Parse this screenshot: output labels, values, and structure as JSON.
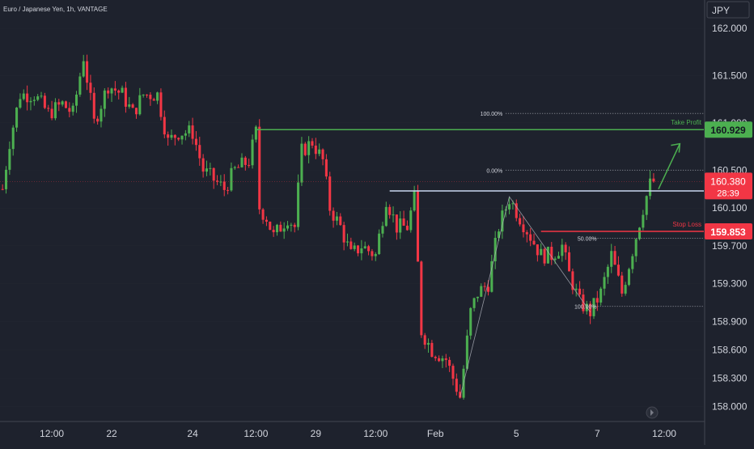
{
  "header": {
    "symbol_title": "Euro / Japanese Yen, 1h, VANTAGE"
  },
  "axis": {
    "currency": "JPY"
  },
  "chart_data": {
    "type": "candlestick",
    "ylim": [
      157.85,
      162.3
    ],
    "yticks": [
      {
        "value": 162.0,
        "label": "162.000"
      },
      {
        "value": 161.5,
        "label": "161.500"
      },
      {
        "value": 161.0,
        "label": "161.000"
      },
      {
        "value": 160.5,
        "label": "160.500"
      },
      {
        "value": 160.1,
        "label": "160.100"
      },
      {
        "value": 159.7,
        "label": "159.700"
      },
      {
        "value": 159.3,
        "label": "159.300"
      },
      {
        "value": 158.9,
        "label": "158.900"
      },
      {
        "value": 158.6,
        "label": "158.600"
      },
      {
        "value": 158.3,
        "label": "158.300"
      },
      {
        "value": 158.0,
        "label": "158.000"
      }
    ],
    "xticks": [
      {
        "bar": 14,
        "label": "12:00"
      },
      {
        "bar": 31,
        "label": "22"
      },
      {
        "bar": 54,
        "label": "24"
      },
      {
        "bar": 72,
        "label": "12:00"
      },
      {
        "bar": 89,
        "label": "29"
      },
      {
        "bar": 106,
        "label": "12:00"
      },
      {
        "bar": 123,
        "label": "Feb"
      },
      {
        "bar": 146,
        "label": "5"
      },
      {
        "bar": 169,
        "label": "7"
      },
      {
        "bar": 188,
        "label": "12:00"
      }
    ],
    "xlim_bars": [
      0,
      199
    ],
    "anchors": [
      [
        0,
        160.3
      ],
      [
        2,
        160.8
      ],
      [
        5,
        161.3
      ],
      [
        9,
        161.3
      ],
      [
        13,
        161.1
      ],
      [
        17,
        161.2
      ],
      [
        20,
        161.1
      ],
      [
        23,
        161.7
      ],
      [
        26,
        161.0
      ],
      [
        30,
        161.4
      ],
      [
        34,
        161.3
      ],
      [
        37,
        161.1
      ],
      [
        40,
        161.3
      ],
      [
        44,
        161.3
      ],
      [
        47,
        160.8
      ],
      [
        50,
        160.9
      ],
      [
        54,
        160.9
      ],
      [
        57,
        160.5
      ],
      [
        60,
        160.4
      ],
      [
        63,
        160.3
      ],
      [
        66,
        160.5
      ],
      [
        70,
        160.6
      ],
      [
        72,
        160.9
      ],
      [
        73,
        160.1
      ],
      [
        75,
        160.0
      ],
      [
        77,
        159.8
      ],
      [
        81,
        160.0
      ],
      [
        83,
        159.9
      ],
      [
        85,
        160.7
      ],
      [
        88,
        160.8
      ],
      [
        91,
        160.6
      ],
      [
        93,
        160.1
      ],
      [
        96,
        159.9
      ],
      [
        99,
        159.6
      ],
      [
        102,
        159.7
      ],
      [
        106,
        159.6
      ],
      [
        109,
        160.2
      ],
      [
        112,
        159.9
      ],
      [
        115,
        159.9
      ],
      [
        117,
        160.2
      ],
      [
        119,
        158.8
      ],
      [
        122,
        158.6
      ],
      [
        126,
        158.5
      ],
      [
        130,
        158.1
      ],
      [
        133,
        159.0
      ],
      [
        135,
        159.2
      ],
      [
        138,
        159.3
      ],
      [
        141,
        159.9
      ],
      [
        144,
        160.2
      ],
      [
        147,
        160.0
      ],
      [
        150,
        159.8
      ],
      [
        153,
        159.6
      ],
      [
        156,
        159.6
      ],
      [
        159,
        159.7
      ],
      [
        161,
        159.4
      ],
      [
        164,
        159.1
      ],
      [
        167,
        159.0
      ],
      [
        170,
        159.2
      ],
      [
        173,
        159.6
      ],
      [
        176,
        159.2
      ],
      [
        178,
        159.5
      ],
      [
        180,
        159.8
      ],
      [
        182,
        160.1
      ],
      [
        184,
        160.35
      ],
      [
        185,
        160.38
      ]
    ],
    "levels": {
      "take_profit": {
        "value": 160.929,
        "label": "160.929",
        "text": "Take Profit",
        "color": "#4caf50"
      },
      "stop_loss": {
        "value": 159.853,
        "label": "159.853",
        "text": "Stop Loss",
        "color": "#f23645"
      },
      "entry": {
        "value": 160.28,
        "color": "#c8d6f0"
      },
      "last_price": {
        "value": 160.38,
        "label": "160.380",
        "countdown": "28:39",
        "color": "#f23645"
      }
    },
    "fib_right": [
      {
        "label": "100.00%",
        "value": 161.1
      },
      {
        "label": "0.00%",
        "value": 160.5
      }
    ],
    "fib_bottom": [
      {
        "label": "50.00%",
        "value": 159.78
      },
      {
        "label": "100.00%",
        "value": 159.06
      }
    ]
  },
  "colors": {
    "background": "#1e222d",
    "up": "#4caf50",
    "down": "#f23645",
    "text": "#d1d4dc",
    "grid": "#2a2e39",
    "dotted": "#9598a1",
    "price_axis_label_bg": "#131722"
  }
}
